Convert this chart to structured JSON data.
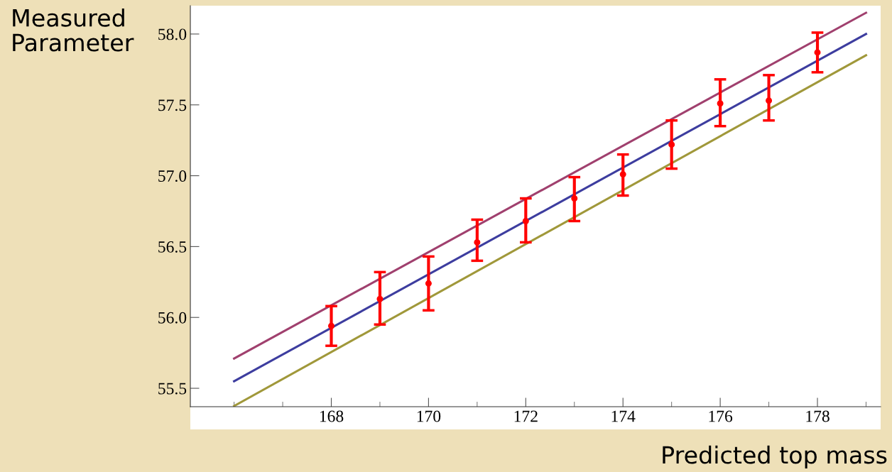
{
  "chart_data": {
    "type": "scatter",
    "xlabel": "Predicted top mass",
    "ylabel": "Measured\nParameter",
    "xlim": [
      165.1,
      179.3
    ],
    "ylim": [
      55.37,
      58.2
    ],
    "xticks": [
      168,
      170,
      172,
      174,
      176,
      178,
      {
        "value": 166,
        "label": null
      },
      {
        "value": 167,
        "label": null
      },
      {
        "value": 169,
        "label": null
      },
      {
        "value": 171,
        "label": null
      },
      {
        "value": 173,
        "label": null
      },
      {
        "value": 175,
        "label": null
      },
      {
        "value": 177,
        "label": null
      },
      {
        "value": 179,
        "label": null
      }
    ],
    "yticks": [
      {
        "value": 55.5,
        "label": "55.5"
      },
      {
        "value": 56,
        "label": "56.0"
      },
      {
        "value": 56.5,
        "label": "56.5"
      },
      {
        "value": 57,
        "label": "57.0"
      },
      {
        "value": 57.5,
        "label": "57.5"
      },
      {
        "value": 58,
        "label": "58.0"
      }
    ],
    "grid": false,
    "legend": false,
    "series": [
      {
        "type": "line",
        "color": "#a0406e",
        "x": [
          166,
          179
        ],
        "values": [
          55.71,
          58.15
        ]
      },
      {
        "type": "line",
        "color": "#3d3d9f",
        "x": [
          166,
          179
        ],
        "values": [
          55.55,
          58.0
        ]
      },
      {
        "type": "line",
        "color": "#a0983a",
        "x": [
          166,
          179
        ],
        "values": [
          55.375,
          57.85
        ]
      },
      {
        "color": "#ff0000",
        "marker": "circle",
        "x": [
          168,
          169,
          170,
          171,
          172,
          173,
          174,
          175,
          176,
          177,
          178
        ],
        "values": [
          55.94,
          56.13,
          56.24,
          56.53,
          56.68,
          56.84,
          57.01,
          57.22,
          57.51,
          57.53,
          57.87
        ],
        "errors": [
          [
            55.8,
            56.08
          ],
          [
            55.95,
            56.32
          ],
          [
            56.05,
            56.43
          ],
          [
            56.4,
            56.69
          ],
          [
            56.53,
            56.84
          ],
          [
            56.68,
            56.99
          ],
          [
            56.86,
            57.15
          ],
          [
            57.05,
            57.39
          ],
          [
            57.35,
            57.68
          ],
          [
            57.39,
            57.71
          ],
          [
            57.73,
            58.01
          ]
        ]
      }
    ]
  }
}
